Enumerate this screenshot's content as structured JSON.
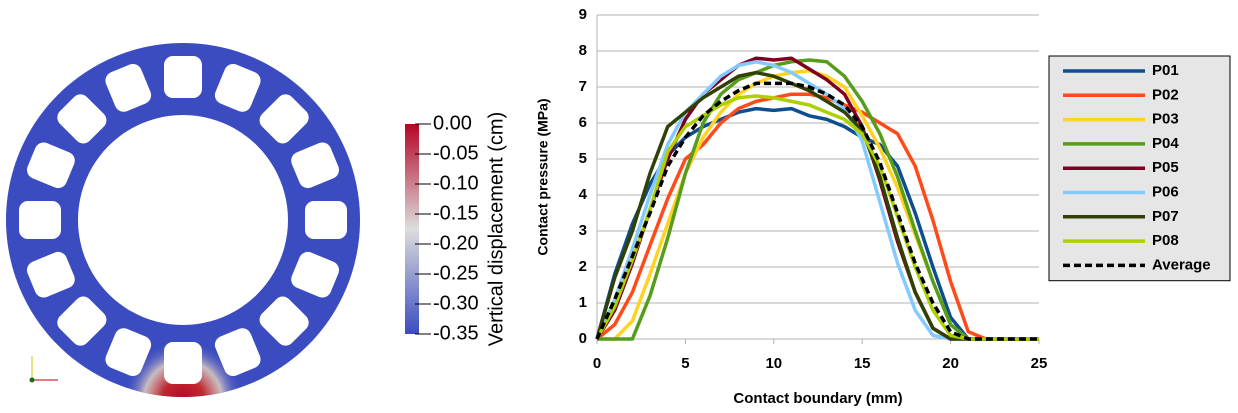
{
  "chart_data": [
    {
      "type": "colorbar",
      "title": "Vertical displacement (cm)",
      "ylim": [
        -0.35,
        0
      ],
      "yticks": [
        {
          "value": 0,
          "label": "0.00"
        },
        -0.05,
        {
          "value": -0.1,
          "label": "-0.10"
        },
        -0.15,
        {
          "value": -0.2,
          "label": "-0.20"
        },
        -0.25,
        {
          "value": -0.3,
          "label": "-0.30"
        },
        -0.35
      ],
      "colors": [
        "#b40426",
        "#dddddd",
        "#3b4cc0"
      ]
    },
    {
      "type": "line",
      "xlabel": "Contact boundary (mm)",
      "ylabel": "Contact pressure (MPa)",
      "xlim": [
        0,
        25
      ],
      "xticks": [
        0,
        5,
        10,
        15,
        20,
        25
      ],
      "ylim": [
        0,
        9
      ],
      "yticks": [
        0,
        1,
        2,
        3,
        4,
        5,
        6,
        7,
        8,
        9
      ],
      "grid": true,
      "legend": "right",
      "x": [
        0,
        1,
        2,
        3,
        4,
        5,
        6,
        7,
        8,
        9,
        10,
        11,
        12,
        13,
        14,
        15,
        16,
        17,
        18,
        19,
        20,
        21,
        22,
        23,
        24,
        25
      ],
      "series": [
        {
          "name": "P01",
          "color": "#0e4d8f",
          "values": [
            0,
            1.8,
            3.2,
            4.3,
            5.1,
            5.6,
            5.9,
            6.1,
            6.3,
            6.4,
            6.35,
            6.4,
            6.2,
            6.1,
            5.9,
            5.6,
            5.4,
            4.8,
            3.5,
            2.0,
            0.6,
            0,
            0,
            0,
            0,
            0
          ]
        },
        {
          "name": "P02",
          "color": "#ff4a1a",
          "values": [
            0,
            0.4,
            1.3,
            2.6,
            3.9,
            5.0,
            5.4,
            6.0,
            6.4,
            6.6,
            6.7,
            6.8,
            6.8,
            6.7,
            6.5,
            6.3,
            6.0,
            5.7,
            4.8,
            3.3,
            1.6,
            0.2,
            0,
            0,
            0,
            0
          ]
        },
        {
          "name": "P03",
          "color": "#ffd320",
          "values": [
            0,
            0,
            0.5,
            1.8,
            3.2,
            4.6,
            5.6,
            6.3,
            6.8,
            7.1,
            7.3,
            7.4,
            7.45,
            7.3,
            7.0,
            6.2,
            5.3,
            4.2,
            2.9,
            1.6,
            0.4,
            0,
            0,
            0,
            0,
            0
          ]
        },
        {
          "name": "P04",
          "color": "#579d1c",
          "values": [
            0,
            0,
            0,
            1.2,
            2.8,
            4.6,
            6.0,
            6.8,
            7.2,
            7.4,
            7.6,
            7.7,
            7.75,
            7.7,
            7.3,
            6.6,
            5.7,
            4.5,
            3.0,
            1.6,
            0.4,
            0,
            0,
            0,
            0,
            0
          ]
        },
        {
          "name": "P05",
          "color": "#7e0021",
          "values": [
            0,
            0.8,
            2.1,
            3.6,
            5.0,
            6.1,
            6.8,
            7.2,
            7.6,
            7.8,
            7.75,
            7.8,
            7.5,
            7.2,
            6.8,
            5.9,
            4.4,
            2.7,
            1.3,
            0.3,
            0,
            0,
            0,
            0,
            0,
            0
          ]
        },
        {
          "name": "P06",
          "color": "#83caff",
          "values": [
            0,
            1.1,
            2.5,
            4.0,
            5.4,
            6.3,
            6.8,
            7.3,
            7.6,
            7.7,
            7.6,
            7.4,
            7.1,
            6.8,
            6.4,
            5.5,
            3.8,
            2.1,
            0.8,
            0.1,
            0,
            0,
            0,
            0,
            0,
            0
          ]
        },
        {
          "name": "P07",
          "color": "#314004",
          "values": [
            0,
            1.7,
            3.0,
            4.6,
            5.9,
            6.3,
            6.7,
            7.0,
            7.3,
            7.4,
            7.3,
            7.1,
            6.9,
            6.6,
            6.3,
            5.8,
            4.5,
            2.8,
            1.3,
            0.3,
            0,
            0,
            0,
            0,
            0,
            0
          ]
        },
        {
          "name": "P08",
          "color": "#aecf00",
          "values": [
            0,
            0.9,
            2.2,
            3.6,
            5.2,
            5.9,
            6.2,
            6.5,
            6.7,
            6.75,
            6.7,
            6.6,
            6.5,
            6.3,
            6.1,
            5.7,
            4.8,
            3.4,
            2.0,
            0.8,
            0.1,
            0,
            0,
            0,
            0,
            0
          ]
        },
        {
          "name": "Average",
          "color": "#000000",
          "dashed": true,
          "values": [
            0,
            1.1,
            2.3,
            3.5,
            4.8,
            5.6,
            6.2,
            6.6,
            6.9,
            7.1,
            7.1,
            7.1,
            7.0,
            6.8,
            6.5,
            5.9,
            4.9,
            3.5,
            2.1,
            1.0,
            0.2,
            0,
            0,
            0,
            0,
            0
          ]
        }
      ]
    }
  ]
}
